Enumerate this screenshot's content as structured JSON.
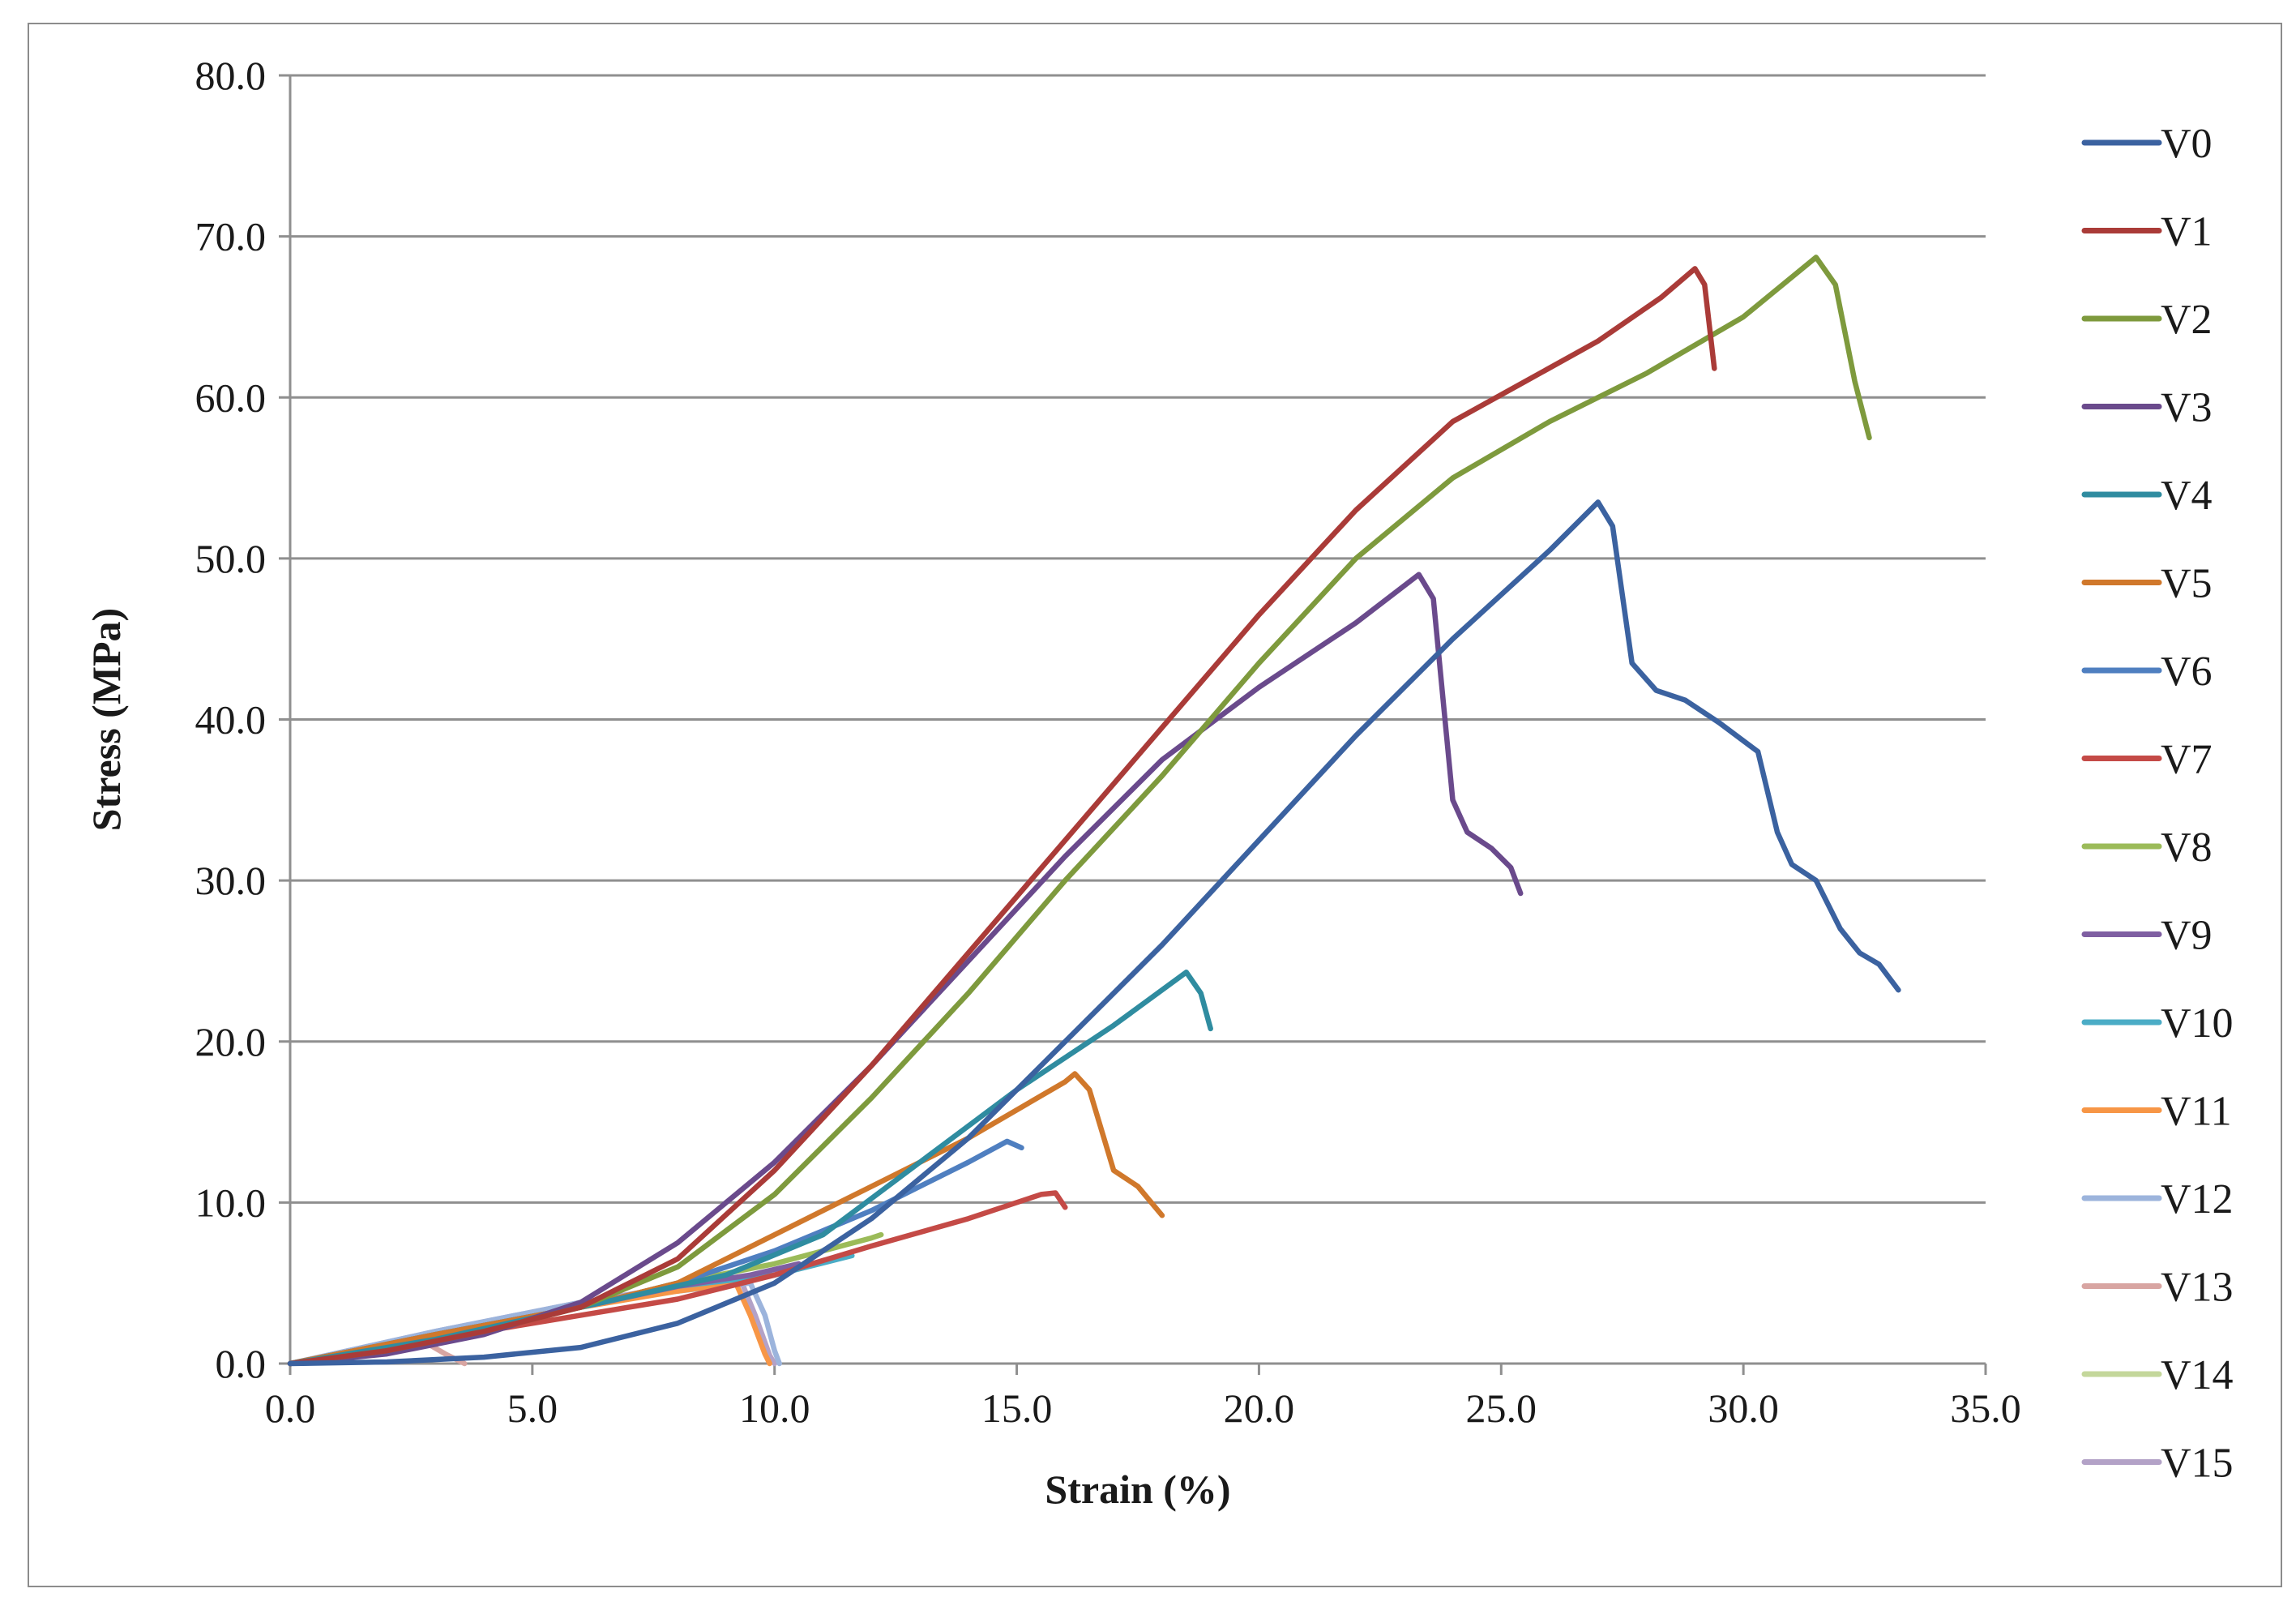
{
  "chart_data": {
    "type": "line",
    "title": "",
    "xlabel": "Strain (%)",
    "ylabel": "Stress (MPa)",
    "xlim": [
      0,
      35
    ],
    "ylim": [
      0,
      80
    ],
    "x_ticks": [
      {
        "value": 0,
        "label": "0.0"
      },
      {
        "value": 5,
        "label": "5.0"
      },
      {
        "value": 10,
        "label": "10.0"
      },
      {
        "value": 15,
        "label": "15.0"
      },
      {
        "value": 20,
        "label": "20.0"
      },
      {
        "value": 25,
        "label": "25.0"
      },
      {
        "value": 30,
        "label": "30.0"
      },
      {
        "value": 35,
        "label": "35.0"
      }
    ],
    "y_ticks": [
      {
        "value": 0,
        "label": "0.0"
      },
      {
        "value": 10,
        "label": "10.0"
      },
      {
        "value": 20,
        "label": "20.0"
      },
      {
        "value": 30,
        "label": "30.0"
      },
      {
        "value": 40,
        "label": "40.0"
      },
      {
        "value": 50,
        "label": "50.0"
      },
      {
        "value": 60,
        "label": "60.0"
      },
      {
        "value": 70,
        "label": "70.0"
      },
      {
        "value": 80,
        "label": "80.0"
      }
    ],
    "grid": true,
    "legend_position": "right",
    "series": [
      {
        "name": "V0",
        "color": "#3b62a0",
        "points": [
          [
            0,
            0
          ],
          [
            2,
            0.1
          ],
          [
            4,
            0.4
          ],
          [
            6,
            1
          ],
          [
            8,
            2.5
          ],
          [
            10,
            5
          ],
          [
            12,
            9
          ],
          [
            14,
            14
          ],
          [
            16,
            20
          ],
          [
            18,
            26
          ],
          [
            20,
            32.5
          ],
          [
            22,
            39
          ],
          [
            24,
            45
          ],
          [
            26,
            50.5
          ],
          [
            27,
            53.5
          ],
          [
            27.3,
            52
          ],
          [
            27.7,
            43.5
          ],
          [
            28.2,
            41.8
          ],
          [
            28.8,
            41.2
          ],
          [
            29.5,
            39.8
          ],
          [
            30.3,
            38
          ],
          [
            30.7,
            33
          ],
          [
            31,
            31
          ],
          [
            31.5,
            30
          ],
          [
            32,
            27
          ],
          [
            32.4,
            25.5
          ],
          [
            32.8,
            24.8
          ],
          [
            33.2,
            23.2
          ]
        ]
      },
      {
        "name": "V1",
        "color": "#aa3b38",
        "points": [
          [
            0,
            0
          ],
          [
            2,
            0.8
          ],
          [
            4,
            2
          ],
          [
            6,
            3.5
          ],
          [
            8,
            6.5
          ],
          [
            10,
            12
          ],
          [
            12,
            18.5
          ],
          [
            14,
            25.5
          ],
          [
            16,
            32.5
          ],
          [
            18,
            39.5
          ],
          [
            20,
            46.5
          ],
          [
            22,
            53
          ],
          [
            24,
            58.5
          ],
          [
            25.5,
            61
          ],
          [
            27,
            63.5
          ],
          [
            28.3,
            66.2
          ],
          [
            29,
            68
          ],
          [
            29.2,
            67
          ],
          [
            29.4,
            61.8
          ]
        ]
      },
      {
        "name": "V2",
        "color": "#7e9a3d",
        "points": [
          [
            0,
            0
          ],
          [
            2,
            0.8
          ],
          [
            4,
            2
          ],
          [
            6,
            3.5
          ],
          [
            8,
            6
          ],
          [
            10,
            10.5
          ],
          [
            12,
            16.5
          ],
          [
            14,
            23
          ],
          [
            16,
            30
          ],
          [
            18,
            36.5
          ],
          [
            20,
            43.5
          ],
          [
            22,
            50
          ],
          [
            24,
            55
          ],
          [
            26,
            58.5
          ],
          [
            28,
            61.5
          ],
          [
            30,
            65
          ],
          [
            31.5,
            68.7
          ],
          [
            31.9,
            67
          ],
          [
            32.3,
            61
          ],
          [
            32.6,
            57.5
          ]
        ]
      },
      {
        "name": "V3",
        "color": "#6a4a8c",
        "points": [
          [
            0,
            0
          ],
          [
            2,
            0.6
          ],
          [
            4,
            1.8
          ],
          [
            6,
            3.8
          ],
          [
            8,
            7.5
          ],
          [
            10,
            12.5
          ],
          [
            12,
            18.5
          ],
          [
            14,
            25
          ],
          [
            16,
            31.5
          ],
          [
            18,
            37.5
          ],
          [
            20,
            42
          ],
          [
            22,
            46
          ],
          [
            23.3,
            49
          ],
          [
            23.6,
            47.5
          ],
          [
            24,
            35
          ],
          [
            24.3,
            33
          ],
          [
            24.8,
            32
          ],
          [
            25.2,
            30.8
          ],
          [
            25.4,
            29.2
          ]
        ]
      },
      {
        "name": "V4",
        "color": "#2f8ca0",
        "points": [
          [
            0,
            0
          ],
          [
            3,
            1.5
          ],
          [
            6,
            3.5
          ],
          [
            9,
            5.5
          ],
          [
            11,
            8
          ],
          [
            13,
            12.5
          ],
          [
            15,
            17
          ],
          [
            17,
            21
          ],
          [
            18.5,
            24.3
          ],
          [
            18.8,
            23
          ],
          [
            19,
            20.8
          ]
        ]
      },
      {
        "name": "V5",
        "color": "#d0782b",
        "points": [
          [
            0,
            0
          ],
          [
            3,
            1.8
          ],
          [
            6,
            3.5
          ],
          [
            8,
            5
          ],
          [
            10,
            8
          ],
          [
            12,
            11
          ],
          [
            14,
            14
          ],
          [
            16,
            17.5
          ],
          [
            16.2,
            18
          ],
          [
            16.5,
            17
          ],
          [
            17,
            12
          ],
          [
            17.5,
            11
          ],
          [
            18,
            9.2
          ]
        ]
      },
      {
        "name": "V6",
        "color": "#4f7fc0",
        "points": [
          [
            0,
            0
          ],
          [
            3,
            1.8
          ],
          [
            6,
            3.5
          ],
          [
            8,
            5
          ],
          [
            10,
            7
          ],
          [
            12,
            9.5
          ],
          [
            14,
            12.5
          ],
          [
            14.8,
            13.8
          ],
          [
            15.1,
            13.4
          ]
        ]
      },
      {
        "name": "V7",
        "color": "#c44a46",
        "points": [
          [
            0,
            0
          ],
          [
            3,
            1.5
          ],
          [
            6,
            3
          ],
          [
            8,
            4
          ],
          [
            10,
            5.5
          ],
          [
            12,
            7.3
          ],
          [
            14,
            9
          ],
          [
            15.5,
            10.5
          ],
          [
            15.8,
            10.6
          ],
          [
            16,
            9.7
          ]
        ]
      },
      {
        "name": "V8",
        "color": "#9bbb59",
        "points": [
          [
            0,
            0
          ],
          [
            3,
            1.8
          ],
          [
            6,
            3.5
          ],
          [
            8,
            5
          ],
          [
            10,
            6.2
          ],
          [
            11,
            7
          ],
          [
            12,
            7.8
          ],
          [
            12.2,
            8
          ]
        ]
      },
      {
        "name": "V9",
        "color": "#7f5fa2",
        "points": [
          [
            0,
            0
          ],
          [
            3,
            1.8
          ],
          [
            6,
            3.5
          ],
          [
            8,
            4.8
          ],
          [
            9.5,
            5.5
          ],
          [
            10.5,
            6.2
          ]
        ]
      },
      {
        "name": "V10",
        "color": "#4bacc6",
        "points": [
          [
            0,
            0
          ],
          [
            3,
            1.8
          ],
          [
            6,
            3.5
          ],
          [
            8,
            4.8
          ],
          [
            10,
            5.5
          ],
          [
            11.6,
            6.7
          ]
        ]
      },
      {
        "name": "V11",
        "color": "#f79646",
        "points": [
          [
            0,
            0
          ],
          [
            3,
            1.8
          ],
          [
            6,
            3.5
          ],
          [
            8,
            4.5
          ],
          [
            9.2,
            5
          ],
          [
            9.5,
            3
          ],
          [
            9.8,
            0.6
          ],
          [
            9.9,
            0
          ]
        ]
      },
      {
        "name": "V12",
        "color": "#9cb4dc",
        "points": [
          [
            0,
            0
          ],
          [
            3,
            2
          ],
          [
            6,
            3.8
          ],
          [
            8,
            4.5
          ],
          [
            9.5,
            5
          ],
          [
            9.8,
            3
          ],
          [
            10,
            0.8
          ],
          [
            10.1,
            0
          ]
        ]
      },
      {
        "name": "V13",
        "color": "#d8a5a2",
        "points": [
          [
            0,
            0
          ],
          [
            1.5,
            0.8
          ],
          [
            2.8,
            1.3
          ],
          [
            3.2,
            0.6
          ],
          [
            3.6,
            0
          ]
        ]
      },
      {
        "name": "V14",
        "color": "#c4d79b",
        "points": [
          [
            0,
            0
          ],
          [
            1,
            0.5
          ],
          [
            2,
            1
          ],
          [
            2.5,
            1.2
          ]
        ]
      },
      {
        "name": "V15",
        "color": "#b3a2c7",
        "points": [
          [
            0,
            0
          ],
          [
            3,
            2
          ],
          [
            6,
            3.8
          ],
          [
            8,
            4.8
          ],
          [
            9.3,
            5.2
          ],
          [
            9.6,
            3
          ],
          [
            9.9,
            0.5
          ],
          [
            10,
            0
          ]
        ]
      }
    ]
  }
}
